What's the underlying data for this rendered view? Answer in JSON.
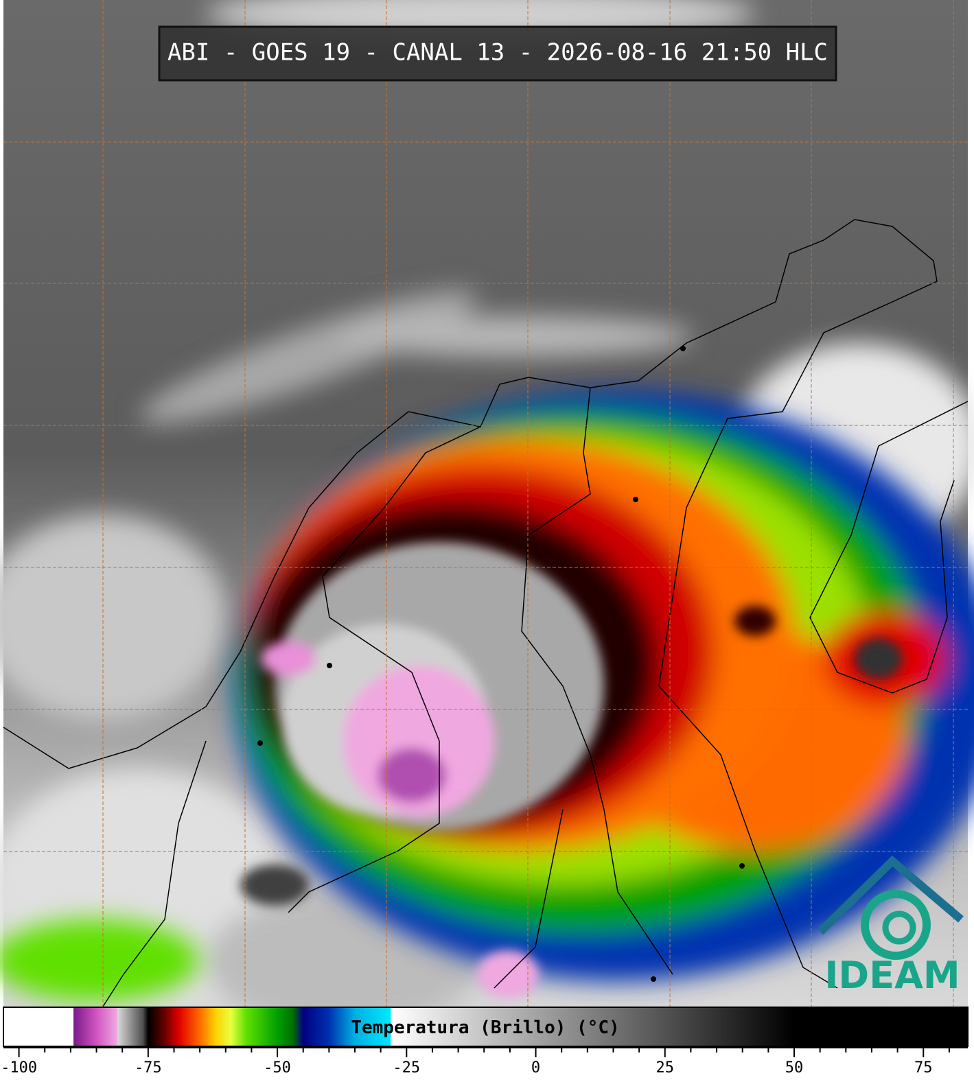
{
  "title": "ABI - GOES 19 - CANAL 13 - 2026-08-16 21:50 HLC",
  "logo": "IDEAM",
  "colorbar": {
    "label": "Temperatura (Brillo) (°C)",
    "lim": [
      -103,
      83.6
    ],
    "ticks": [
      -100,
      -75,
      -50,
      -25,
      0,
      25,
      50,
      75
    ],
    "minor_ticks": [
      -95,
      -90,
      -85,
      -80,
      -70,
      -65,
      -60,
      -55,
      -45,
      -40,
      -35,
      -30,
      -20,
      -15,
      -10,
      -5,
      5,
      10,
      15,
      20,
      30,
      35,
      40,
      45,
      55,
      60,
      65,
      70,
      80
    ],
    "stops": [
      {
        "value": -103,
        "color": "#ffffff"
      },
      {
        "value": -89.5,
        "color": "#ffffff"
      },
      {
        "value": -89.4,
        "color": "#7a1a8a"
      },
      {
        "value": -85,
        "color": "#d055c0"
      },
      {
        "value": -81,
        "color": "#f0a8e0"
      },
      {
        "value": -80.9,
        "color": "#d8d8d8"
      },
      {
        "value": -76,
        "color": "#505050"
      },
      {
        "value": -75,
        "color": "#000000"
      },
      {
        "value": -72,
        "color": "#600000"
      },
      {
        "value": -69,
        "color": "#e00000"
      },
      {
        "value": -65,
        "color": "#ff6a00"
      },
      {
        "value": -62,
        "color": "#ffd000"
      },
      {
        "value": -59,
        "color": "#e8ff40"
      },
      {
        "value": -56,
        "color": "#60e000"
      },
      {
        "value": -50,
        "color": "#00a000"
      },
      {
        "value": -47,
        "color": "#007000"
      },
      {
        "value": -45,
        "color": "#000080"
      },
      {
        "value": -40,
        "color": "#0030b0"
      },
      {
        "value": -35,
        "color": "#00b0e0"
      },
      {
        "value": -28.1,
        "color": "#00e8ff"
      },
      {
        "value": -28,
        "color": "#ffffff"
      },
      {
        "value": 50,
        "color": "#000000"
      },
      {
        "value": 83.6,
        "color": "#000000"
      }
    ]
  }
}
